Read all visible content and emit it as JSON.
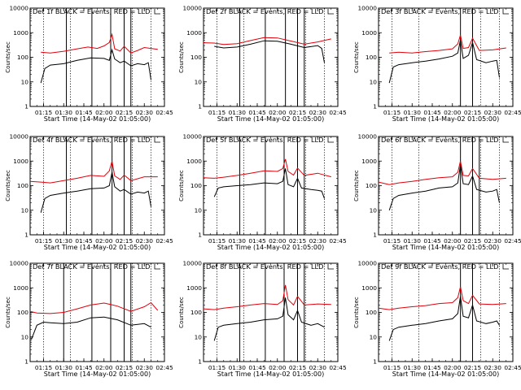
{
  "chart_data": {
    "type": "line",
    "layout": "3x3 grid",
    "y_scale": "log",
    "ylim": [
      1,
      10000
    ],
    "ylabel": "Counts/sec",
    "xlabel": "Start Time (14-May-02 01:05:00)",
    "x_range": [
      "01:05",
      "02:45"
    ],
    "x_ticks": [
      "01:15",
      "01:30",
      "01:45",
      "02:00",
      "02:15",
      "02:30",
      "02:45"
    ],
    "y_ticks": [
      "1",
      "10",
      "100",
      "1000",
      "10000"
    ],
    "colors": {
      "events": "#000000",
      "lld": "#e0000a"
    },
    "dotted_lines": [
      "01:15",
      "01:35",
      "02:21",
      "02:35"
    ],
    "panels": [
      {
        "title": "Det 1f BLACK = Events, RED = LLD",
        "solid_lines": [
          "01:32",
          "01:51",
          "02:05",
          "02:15",
          "02:20"
        ],
        "events": {
          "x": [
            "01:13",
            "01:16",
            "01:20",
            "01:30",
            "01:40",
            "01:50",
            "02:00",
            "02:04",
            "02:06",
            "02:08",
            "02:12",
            "02:15",
            "02:20",
            "02:25",
            "02:30",
            "02:33",
            "02:35"
          ],
          "y": [
            9,
            35,
            48,
            55,
            75,
            95,
            90,
            75,
            200,
            85,
            60,
            70,
            45,
            55,
            50,
            60,
            12
          ]
        },
        "lld": {
          "x": [
            "01:13",
            "01:20",
            "01:30",
            "01:40",
            "01:48",
            "01:55",
            "02:00",
            "02:04",
            "02:06",
            "02:08",
            "02:12",
            "02:15",
            "02:20",
            "02:25",
            "02:30",
            "02:40"
          ],
          "y": [
            160,
            150,
            175,
            220,
            260,
            230,
            290,
            400,
            850,
            220,
            180,
            280,
            150,
            190,
            250,
            210
          ]
        }
      },
      {
        "title": "Det 2f BLACK = Events, RED = LLD",
        "solid_lines": [
          "01:32",
          "01:51",
          "02:06",
          "02:15",
          "02:20"
        ],
        "events": {
          "x": [
            "01:13",
            "01:20",
            "01:30",
            "01:40",
            "01:50",
            "02:00",
            "02:10",
            "02:20",
            "02:30",
            "02:33",
            "02:35"
          ],
          "y": [
            280,
            240,
            260,
            340,
            470,
            450,
            340,
            250,
            300,
            230,
            60
          ]
        },
        "lld": {
          "x": [
            "01:05",
            "01:13",
            "01:20",
            "01:30",
            "01:40",
            "01:50",
            "02:00",
            "02:10",
            "02:20",
            "02:30",
            "02:40"
          ],
          "y": [
            390,
            380,
            330,
            360,
            480,
            630,
            610,
            460,
            340,
            420,
            560
          ]
        }
      },
      {
        "title": "Det 3f BLACK = Events, RED = LLD",
        "solid_lines": [
          "02:06",
          "02:15"
        ],
        "events": {
          "x": [
            "01:13",
            "01:16",
            "01:20",
            "01:30",
            "01:40",
            "01:50",
            "02:00",
            "02:04",
            "02:06",
            "02:08",
            "02:12",
            "02:15",
            "02:18",
            "02:25",
            "02:30",
            "02:33",
            "02:35"
          ],
          "y": [
            9,
            40,
            50,
            60,
            70,
            85,
            110,
            150,
            500,
            90,
            120,
            400,
            80,
            60,
            70,
            75,
            15
          ]
        },
        "lld": {
          "x": [
            "01:13",
            "01:20",
            "01:30",
            "01:40",
            "01:50",
            "02:00",
            "02:04",
            "02:06",
            "02:08",
            "02:12",
            "02:15",
            "02:20",
            "02:30",
            "02:40"
          ],
          "y": [
            150,
            160,
            150,
            170,
            190,
            220,
            350,
            800,
            230,
            250,
            600,
            190,
            200,
            240
          ]
        }
      },
      {
        "title": "Det 4f BLACK = Events, RED = LLD",
        "solid_lines": [
          "01:32",
          "01:51",
          "02:06",
          "02:15",
          "02:20"
        ],
        "events": {
          "x": [
            "01:13",
            "01:16",
            "01:20",
            "01:30",
            "01:40",
            "01:50",
            "02:00",
            "02:04",
            "02:06",
            "02:08",
            "02:12",
            "02:15",
            "02:20",
            "02:25",
            "02:30",
            "02:33",
            "02:35"
          ],
          "y": [
            8,
            30,
            40,
            50,
            60,
            75,
            80,
            100,
            350,
            90,
            60,
            70,
            45,
            55,
            50,
            60,
            14
          ]
        },
        "lld": {
          "x": [
            "01:05",
            "01:13",
            "01:20",
            "01:30",
            "01:40",
            "01:50",
            "02:00",
            "02:04",
            "02:06",
            "02:08",
            "02:12",
            "02:15",
            "02:20",
            "02:30",
            "02:40"
          ],
          "y": [
            150,
            140,
            130,
            160,
            200,
            260,
            240,
            400,
            1000,
            250,
            180,
            270,
            160,
            230,
            230
          ]
        }
      },
      {
        "title": "Det 5f BLACK = Events, RED = LLD",
        "solid_lines": [
          "01:32",
          "01:51",
          "02:05",
          "02:15",
          "02:20"
        ],
        "events": {
          "x": [
            "01:13",
            "01:16",
            "01:20",
            "01:30",
            "01:40",
            "01:50",
            "02:00",
            "02:04",
            "02:06",
            "02:08",
            "02:12",
            "02:15",
            "02:18",
            "02:25",
            "02:30",
            "02:33",
            "02:35"
          ],
          "y": [
            35,
            80,
            90,
            100,
            110,
            130,
            120,
            150,
            500,
            110,
            90,
            200,
            80,
            70,
            65,
            60,
            30
          ]
        },
        "lld": {
          "x": [
            "01:05",
            "01:13",
            "01:20",
            "01:30",
            "01:40",
            "01:50",
            "02:00",
            "02:04",
            "02:06",
            "02:08",
            "02:12",
            "02:15",
            "02:20",
            "02:30",
            "02:40"
          ],
          "y": [
            210,
            200,
            220,
            260,
            320,
            400,
            380,
            500,
            1200,
            380,
            270,
            520,
            260,
            320,
            230
          ]
        }
      },
      {
        "title": "Det 6f BLACK = Events, RED = LLD",
        "solid_lines": [
          "02:06",
          "02:15",
          "02:20"
        ],
        "events": {
          "x": [
            "01:13",
            "01:16",
            "01:20",
            "01:30",
            "01:40",
            "01:50",
            "02:00",
            "02:04",
            "02:06",
            "02:08",
            "02:12",
            "02:15",
            "02:18",
            "02:25",
            "02:30",
            "02:33",
            "02:35"
          ],
          "y": [
            10,
            30,
            40,
            50,
            60,
            80,
            90,
            130,
            700,
            120,
            110,
            250,
            70,
            55,
            60,
            70,
            20
          ]
        },
        "lld": {
          "x": [
            "01:05",
            "01:13",
            "01:20",
            "01:30",
            "01:40",
            "01:50",
            "02:00",
            "02:04",
            "02:06",
            "02:08",
            "02:12",
            "02:15",
            "02:20",
            "02:30",
            "02:40"
          ],
          "y": [
            140,
            110,
            130,
            150,
            180,
            210,
            230,
            350,
            1000,
            260,
            250,
            500,
            200,
            180,
            200
          ]
        }
      },
      {
        "title": "Det 7f BLACK = Events, RED = LLD",
        "solid_lines": [
          "01:30",
          "01:51",
          "02:05",
          "02:15",
          "02:20"
        ],
        "events": {
          "x": [
            "01:06",
            "01:10",
            "01:15",
            "01:20",
            "01:30",
            "01:40",
            "01:50",
            "02:00",
            "02:10",
            "02:20",
            "02:30",
            "02:35"
          ],
          "y": [
            8,
            30,
            40,
            38,
            35,
            40,
            60,
            65,
            50,
            30,
            35,
            25
          ]
        },
        "lld": {
          "x": [
            "01:05",
            "01:10",
            "01:20",
            "01:30",
            "01:40",
            "01:50",
            "02:00",
            "02:05",
            "02:10",
            "02:20",
            "02:30",
            "02:35",
            "02:40"
          ],
          "y": [
            110,
            95,
            90,
            100,
            140,
            200,
            240,
            210,
            180,
            110,
            170,
            250,
            120
          ]
        }
      },
      {
        "title": "Det 8f BLACK = Events, RED = LLD",
        "solid_lines": [
          "01:32",
          "01:51",
          "02:05",
          "02:15",
          "02:20"
        ],
        "events": {
          "x": [
            "01:13",
            "01:16",
            "01:20",
            "01:30",
            "01:40",
            "01:50",
            "02:00",
            "02:04",
            "02:06",
            "02:08",
            "02:12",
            "02:15",
            "02:18",
            "02:25",
            "02:30",
            "02:35"
          ],
          "y": [
            7,
            25,
            30,
            35,
            40,
            50,
            55,
            70,
            400,
            80,
            50,
            120,
            40,
            30,
            35,
            25
          ]
        },
        "lld": {
          "x": [
            "01:05",
            "01:13",
            "01:20",
            "01:30",
            "01:40",
            "01:50",
            "02:00",
            "02:04",
            "02:06",
            "02:08",
            "02:12",
            "02:15",
            "02:20",
            "02:30",
            "02:40"
          ],
          "y": [
            140,
            130,
            150,
            170,
            200,
            230,
            210,
            300,
            1300,
            330,
            200,
            450,
            200,
            220,
            210
          ]
        }
      },
      {
        "title": "Det 9f BLACK = Events, RED = LLD",
        "solid_lines": [
          "02:06",
          "02:15"
        ],
        "events": {
          "x": [
            "01:13",
            "01:16",
            "01:20",
            "01:30",
            "01:40",
            "01:50",
            "02:00",
            "02:04",
            "02:06",
            "02:08",
            "02:12",
            "02:15",
            "02:18",
            "02:25",
            "02:30",
            "02:33",
            "02:35"
          ],
          "y": [
            7,
            20,
            25,
            30,
            35,
            45,
            55,
            90,
            450,
            70,
            60,
            200,
            45,
            35,
            40,
            45,
            30
          ]
        },
        "lld": {
          "x": [
            "01:05",
            "01:13",
            "01:20",
            "01:30",
            "01:40",
            "01:50",
            "02:00",
            "02:04",
            "02:06",
            "02:08",
            "02:12",
            "02:15",
            "02:20",
            "02:30",
            "02:40"
          ],
          "y": [
            150,
            130,
            150,
            170,
            190,
            230,
            250,
            400,
            1100,
            300,
            230,
            500,
            220,
            210,
            230
          ]
        }
      }
    ]
  }
}
